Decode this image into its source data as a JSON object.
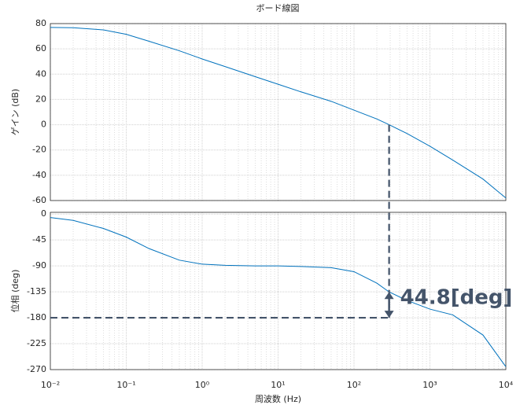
{
  "title": "ボード線図",
  "chart_data": [
    {
      "type": "line",
      "ylabel": "ゲイン (dB)",
      "log_x": true,
      "grid": true,
      "x": [
        0.01,
        0.02,
        0.05,
        0.1,
        0.2,
        0.5,
        1,
        2,
        5,
        10,
        20,
        50,
        100,
        200,
        290,
        500,
        1000,
        2000,
        5000,
        10000
      ],
      "series": [
        {
          "color": "#0072bd",
          "values": [
            77,
            76.7,
            75,
            71.5,
            66,
            58.5,
            52,
            46,
            38,
            32,
            26,
            18.5,
            11.5,
            4.5,
            0,
            -7,
            -17,
            -28,
            -43,
            -58
          ]
        }
      ],
      "xlim": [
        0.01,
        10000
      ],
      "ylim": [
        -60,
        80
      ],
      "yticks": [
        -60,
        -40,
        -20,
        0,
        20,
        40,
        60,
        80
      ],
      "crossover": {
        "x": 290,
        "y": 0
      }
    },
    {
      "type": "line",
      "ylabel": "位相 (deg)",
      "xlabel": "周波数 (Hz)",
      "log_x": true,
      "grid": true,
      "x": [
        0.01,
        0.02,
        0.05,
        0.1,
        0.2,
        0.5,
        1,
        2,
        5,
        10,
        20,
        50,
        100,
        200,
        290,
        500,
        1000,
        2000,
        5000,
        10000
      ],
      "series": [
        {
          "color": "#0072bd",
          "values": [
            -6,
            -11,
            -25,
            -40,
            -60,
            -80,
            -87,
            -89,
            -90,
            -90,
            -91,
            -93,
            -100,
            -120,
            -135.2,
            -150,
            -165,
            -175,
            -210,
            -265
          ]
        }
      ],
      "xlim": [
        0.01,
        10000
      ],
      "ylim": [
        -270,
        3
      ],
      "xticks": [
        {
          "value": 0.01,
          "label": "10⁻²"
        },
        {
          "value": 0.1,
          "label": "10⁻¹"
        },
        {
          "value": 1,
          "label": "10⁰"
        },
        {
          "value": 10,
          "label": "10¹"
        },
        {
          "value": 100,
          "label": "10²"
        },
        {
          "value": 1000,
          "label": "10³"
        },
        {
          "value": 10000,
          "label": "10⁴"
        }
      ],
      "yticks": [
        -270,
        -225,
        -180,
        -135,
        -90,
        -45,
        0
      ],
      "annotation": {
        "text": "44.8[deg]",
        "x": 290,
        "y": -135.2,
        "y_from": -180
      }
    }
  ]
}
